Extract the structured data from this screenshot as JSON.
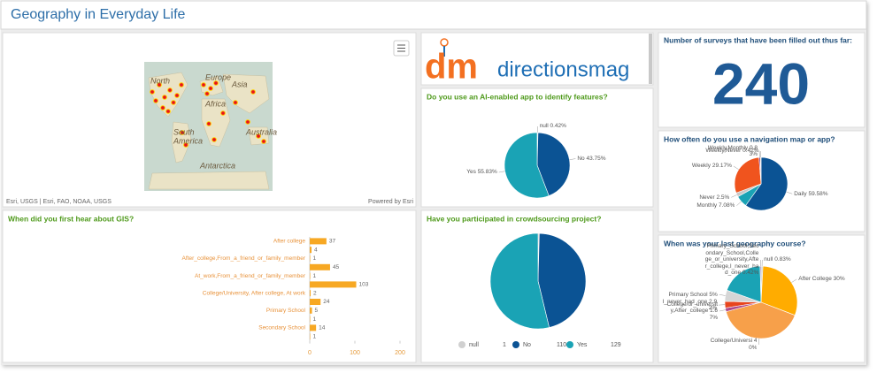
{
  "header": {
    "title": "Geography in Everyday Life"
  },
  "map": {
    "labels": [
      "North",
      "Europe",
      "Asia",
      "Africa",
      "South",
      "America",
      "Australia",
      "Antarctica"
    ],
    "attribution": "Esri, USGS | Esri, FAO, NOAA, USGS",
    "powered_by": "Powered by Esri"
  },
  "logo": {
    "mark": "dm",
    "name": "directionsmag"
  },
  "counter": {
    "title": "Number of surveys that have been filled out thus far:",
    "value": 240
  },
  "chart_data": [
    {
      "type": "bar",
      "title": "When did you first hear about GIS?",
      "categories": [
        "After college",
        null,
        "After_college,From_a_friend_or_family_member",
        null,
        "At_work,From_a_friend_or_family_member",
        null,
        "College/University, After college, At work",
        null,
        "Primary School",
        null,
        "Secondary School",
        null
      ],
      "values": [
        37,
        4,
        1,
        45,
        1,
        103,
        2,
        24,
        5,
        1,
        14,
        1
      ],
      "color": "#f7a823",
      "xlim": [
        0,
        200
      ],
      "xticks": [
        0,
        100,
        200
      ]
    },
    {
      "type": "pie",
      "title": "Do you use an AI-enabled app to identify features?",
      "categories": [
        "null",
        "No",
        "Yes"
      ],
      "values": [
        0.42,
        43.75,
        55.83
      ],
      "value_labels": [
        "0.42%",
        "43.75%",
        "55.83%"
      ],
      "colors": [
        "#d0d0d0",
        "#0b5394",
        "#1aa3b5"
      ]
    },
    {
      "type": "pie",
      "title": "Have you participated in crowdsourcing project?",
      "categories": [
        "null",
        "No",
        "Yes"
      ],
      "values": [
        1,
        110,
        129
      ],
      "colors": [
        "#d0d0d0",
        "#0b5394",
        "#1aa3b5"
      ]
    },
    {
      "type": "pie",
      "title": "How often do you use a navigation map or app?",
      "categories": [
        "Daily",
        "Monthly",
        "Never",
        "Weekly",
        "Weekly,Monthly",
        "Weekly,Never"
      ],
      "values": [
        59.58,
        7.08,
        2.5,
        29.17,
        0.83,
        0.42
      ],
      "value_labels": [
        "59.58%",
        "7.08%",
        "2.5%",
        "29.17%",
        "0.83%",
        "0.42%"
      ],
      "colors": [
        "#0b5394",
        "#1aa3b5",
        "#c8c8c8",
        "#f0541e",
        "#7b3f9e",
        "#e3b52a"
      ]
    },
    {
      "type": "pie",
      "title": "When was your last geography course?",
      "categories": [
        "null",
        "After College",
        "College/Universi",
        "College/or_university,After_college",
        "I_never_had_one",
        "Primary School",
        null,
        "Primary_School,Secondary_School,College_or_university,After_college,I_never_had_one"
      ],
      "values": [
        0.83,
        30,
        40,
        1.67,
        2.92,
        5,
        19.16,
        0.42
      ],
      "value_labels": [
        "0.83%",
        "30%",
        "40%",
        "1.67%",
        "2.92%",
        "5%",
        null,
        "0.42%"
      ],
      "colors": [
        "#c8c8c8",
        "#ffac00",
        "#f7a04a",
        "#b04a8a",
        "#e8451e",
        "#d6d6d6",
        "#1aa3b5",
        "#7b3f9e"
      ]
    }
  ]
}
